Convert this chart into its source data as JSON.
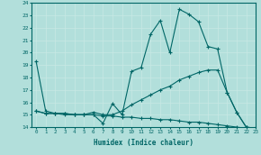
{
  "line1_x": [
    0,
    1,
    2,
    3,
    4,
    5,
    6,
    7,
    8,
    9,
    10,
    11,
    12,
    13,
    14,
    15,
    16,
    17,
    18,
    19,
    20,
    21,
    22,
    23
  ],
  "line1_y": [
    19.3,
    15.3,
    15.1,
    15.1,
    15.0,
    15.0,
    15.0,
    14.3,
    15.9,
    15.0,
    18.5,
    18.8,
    21.5,
    22.6,
    20.0,
    23.5,
    23.1,
    22.5,
    20.5,
    20.3,
    16.8,
    15.2,
    14.0,
    13.9
  ],
  "line2_x": [
    0,
    1,
    2,
    3,
    4,
    5,
    6,
    7,
    8,
    9,
    10,
    11,
    12,
    13,
    14,
    15,
    16,
    17,
    18,
    19,
    20,
    21,
    22,
    23
  ],
  "line2_y": [
    15.3,
    15.1,
    15.1,
    15.1,
    15.0,
    15.0,
    15.2,
    15.0,
    15.0,
    15.3,
    15.8,
    16.2,
    16.6,
    17.0,
    17.3,
    17.8,
    18.1,
    18.4,
    18.6,
    18.6,
    16.8,
    15.2,
    14.0,
    13.9
  ],
  "line3_x": [
    0,
    1,
    2,
    3,
    4,
    5,
    6,
    7,
    8,
    9,
    10,
    11,
    12,
    13,
    14,
    15,
    16,
    17,
    18,
    19,
    20,
    21,
    22,
    23
  ],
  "line3_y": [
    15.3,
    15.1,
    15.1,
    15.0,
    15.0,
    15.0,
    15.0,
    14.9,
    14.9,
    14.8,
    14.8,
    14.7,
    14.7,
    14.6,
    14.6,
    14.5,
    14.4,
    14.4,
    14.3,
    14.2,
    14.1,
    14.0,
    13.9,
    13.9
  ],
  "color": "#006666",
  "bg_color": "#b2dfdb",
  "grid_color": "#c8e8e5",
  "xlabel": "Humidex (Indice chaleur)",
  "ylim": [
    14,
    24
  ],
  "xlim": [
    -0.5,
    23
  ],
  "yticks": [
    14,
    15,
    16,
    17,
    18,
    19,
    20,
    21,
    22,
    23,
    24
  ],
  "xticks": [
    0,
    1,
    2,
    3,
    4,
    5,
    6,
    7,
    8,
    9,
    10,
    11,
    12,
    13,
    14,
    15,
    16,
    17,
    18,
    19,
    20,
    21,
    22,
    23
  ],
  "marker": "+",
  "markersize": 3.5,
  "linewidth": 0.8
}
